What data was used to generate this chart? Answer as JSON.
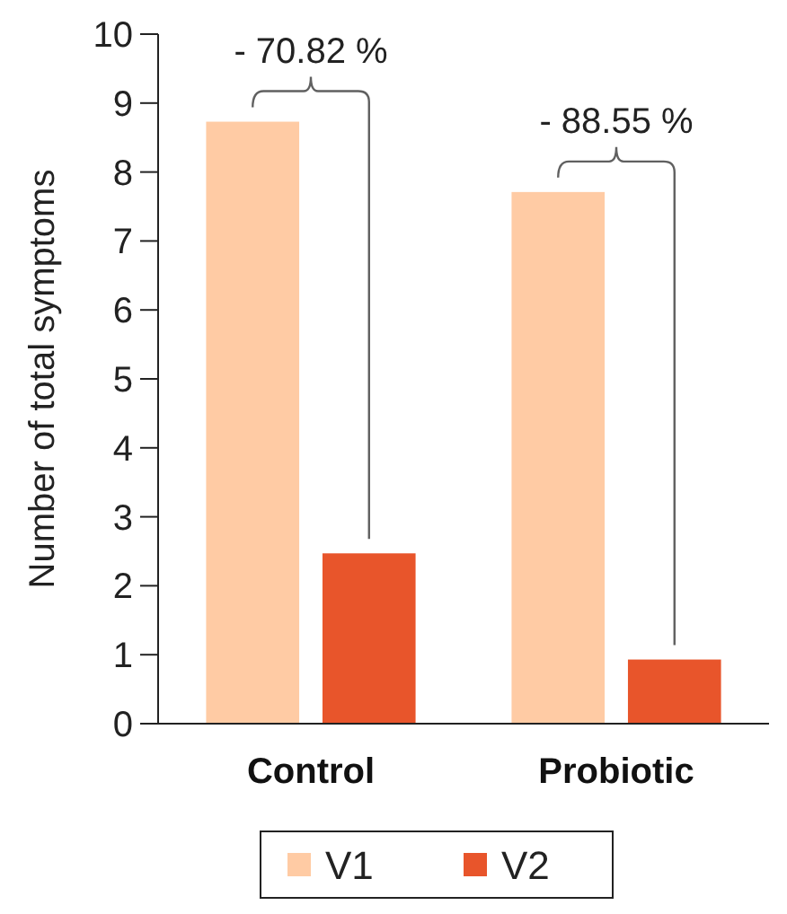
{
  "chart_data": {
    "type": "bar",
    "ylabel": "Number of total symptoms",
    "categories": [
      "Control",
      "Probiotic"
    ],
    "series": [
      {
        "name": "V1",
        "color": "#ffcba4",
        "values": [
          8.73,
          7.71
        ]
      },
      {
        "name": "V2",
        "color": "#e8552b",
        "values": [
          2.47,
          0.93
        ]
      }
    ],
    "ylim": [
      0,
      10
    ],
    "yticks": [
      0,
      1,
      2,
      3,
      4,
      5,
      6,
      7,
      8,
      9,
      10
    ],
    "annotations": [
      "- 70.82 %",
      "- 88.55 %"
    ],
    "legend": "bottom",
    "grid": false
  }
}
